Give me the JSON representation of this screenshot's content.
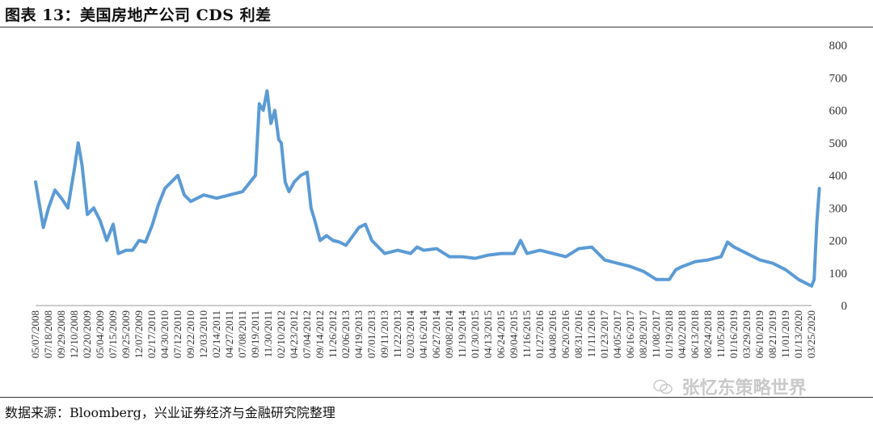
{
  "figure": {
    "title": "图表 13：美国房地产公司 CDS 利差",
    "source": "数据来源：Bloomberg，兴业证券经济与金融研究院整理",
    "watermark": "张忆东策略世界"
  },
  "chart_data": {
    "type": "line",
    "title": "美国房地产公司 CDS 利差",
    "xlabel": "",
    "ylabel": "",
    "ylim": [
      0,
      800
    ],
    "yticks": [
      0,
      100,
      200,
      300,
      400,
      500,
      600,
      700,
      800
    ],
    "y_axis_side": "right",
    "grid": false,
    "line_color": "#5b9bd5",
    "x_tick_labels": [
      "05/07/2008",
      "07/18/2008",
      "09/29/2008",
      "12/10/2008",
      "02/20/2009",
      "05/04/2009",
      "07/15/2009",
      "09/25/2009",
      "12/07/2009",
      "02/17/2010",
      "04/30/2010",
      "07/12/2010",
      "09/22/2010",
      "12/03/2010",
      "02/14/2011",
      "04/27/2011",
      "07/08/2011",
      "09/19/2011",
      "11/30/2011",
      "02/10/2012",
      "04/23/2012",
      "07/04/2012",
      "09/14/2012",
      "11/26/2012",
      "02/06/2013",
      "04/19/2013",
      "07/01/2013",
      "09/11/2013",
      "11/22/2013",
      "02/03/2014",
      "04/16/2014",
      "06/27/2014",
      "09/08/2014",
      "11/19/2014",
      "01/30/2015",
      "04/13/2015",
      "06/24/2015",
      "09/04/2015",
      "11/16/2015",
      "01/27/2016",
      "04/08/2016",
      "06/20/2016",
      "08/31/2016",
      "11/11/2016",
      "01/23/2017",
      "04/05/2017",
      "06/16/2017",
      "08/28/2017",
      "11/08/2017",
      "01/19/2018",
      "04/02/2018",
      "06/13/2018",
      "08/24/2018",
      "11/05/2018",
      "01/16/2019",
      "03/29/2019",
      "06/10/2019",
      "08/21/2019",
      "11/01/2019",
      "01/13/2020",
      "03/25/2020"
    ],
    "series": [
      {
        "values": [
          [
            0,
            380
          ],
          [
            0.3,
            310
          ],
          [
            0.6,
            240
          ],
          [
            1,
            300
          ],
          [
            1.5,
            355
          ],
          [
            2,
            330
          ],
          [
            2.5,
            300
          ],
          [
            3,
            420
          ],
          [
            3.3,
            500
          ],
          [
            3.6,
            430
          ],
          [
            4,
            280
          ],
          [
            4.5,
            300
          ],
          [
            5,
            260
          ],
          [
            5.5,
            200
          ],
          [
            6,
            250
          ],
          [
            6.4,
            160
          ],
          [
            7,
            170
          ],
          [
            7.5,
            170
          ],
          [
            8,
            200
          ],
          [
            8.5,
            195
          ],
          [
            9,
            245
          ],
          [
            9.5,
            310
          ],
          [
            10,
            360
          ],
          [
            10.5,
            380
          ],
          [
            11,
            400
          ],
          [
            11.5,
            340
          ],
          [
            12,
            320
          ],
          [
            12.5,
            330
          ],
          [
            13,
            340
          ],
          [
            14,
            330
          ],
          [
            15,
            340
          ],
          [
            16,
            350
          ],
          [
            17,
            400
          ],
          [
            17.3,
            620
          ],
          [
            17.6,
            600
          ],
          [
            17.9,
            660
          ],
          [
            18.2,
            560
          ],
          [
            18.5,
            600
          ],
          [
            18.8,
            510
          ],
          [
            19,
            500
          ],
          [
            19.3,
            380
          ],
          [
            19.6,
            350
          ],
          [
            20,
            380
          ],
          [
            20.5,
            400
          ],
          [
            21,
            410
          ],
          [
            21.3,
            300
          ],
          [
            21.6,
            260
          ],
          [
            22,
            200
          ],
          [
            22.5,
            215
          ],
          [
            23,
            200
          ],
          [
            23.5,
            195
          ],
          [
            24,
            185
          ],
          [
            25,
            240
          ],
          [
            25.5,
            250
          ],
          [
            26,
            200
          ],
          [
            26.5,
            180
          ],
          [
            27,
            160
          ],
          [
            28,
            170
          ],
          [
            29,
            160
          ],
          [
            29.5,
            180
          ],
          [
            30,
            170
          ],
          [
            31,
            175
          ],
          [
            32,
            150
          ],
          [
            33,
            150
          ],
          [
            34,
            145
          ],
          [
            35,
            155
          ],
          [
            36,
            160
          ],
          [
            37,
            160
          ],
          [
            37.5,
            200
          ],
          [
            38,
            160
          ],
          [
            39,
            170
          ],
          [
            40,
            160
          ],
          [
            41,
            150
          ],
          [
            42,
            175
          ],
          [
            43,
            180
          ],
          [
            44,
            140
          ],
          [
            45,
            130
          ],
          [
            46,
            120
          ],
          [
            47,
            105
          ],
          [
            48,
            80
          ],
          [
            49,
            80
          ],
          [
            49.5,
            110
          ],
          [
            50,
            120
          ],
          [
            51,
            135
          ],
          [
            52,
            140
          ],
          [
            53,
            150
          ],
          [
            53.5,
            195
          ],
          [
            54,
            180
          ],
          [
            55,
            160
          ],
          [
            56,
            140
          ],
          [
            57,
            130
          ],
          [
            58,
            110
          ],
          [
            59,
            80
          ],
          [
            60,
            60
          ],
          [
            60.2,
            80
          ],
          [
            60.4,
            250
          ],
          [
            60.6,
            360
          ]
        ]
      }
    ]
  }
}
